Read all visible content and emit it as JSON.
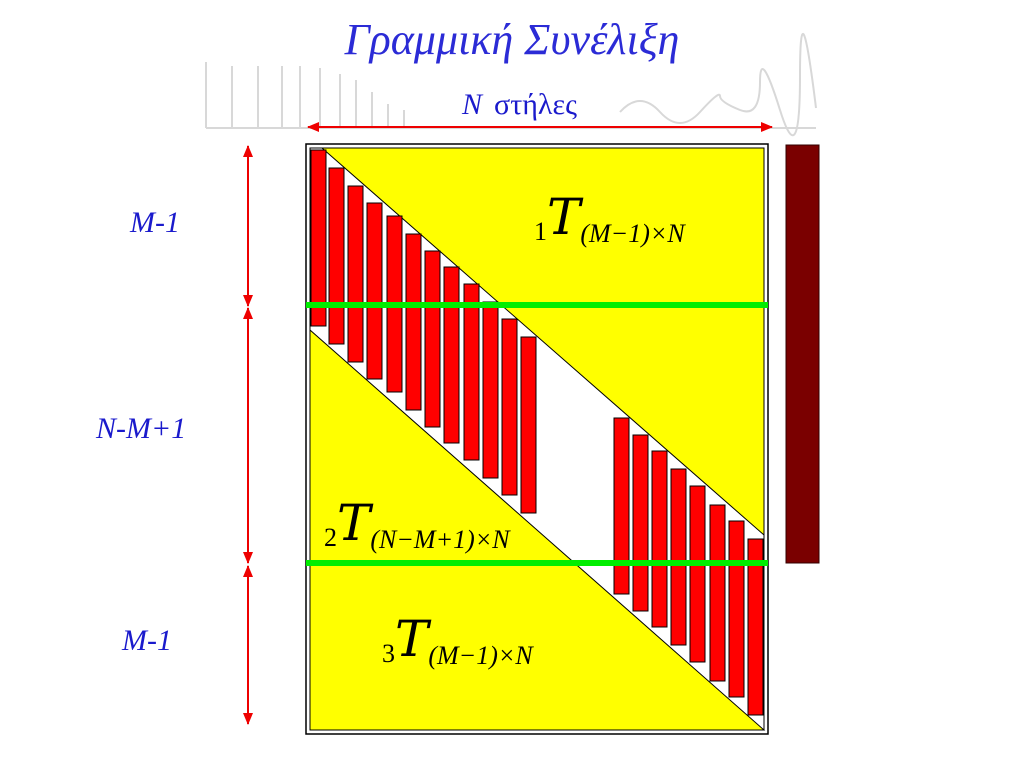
{
  "title": "Γραμμική Συνέλιξη",
  "columns": {
    "symbol": "N",
    "label": "στήλες"
  },
  "rows": [
    {
      "label": "M-1"
    },
    {
      "label": "N-M+1"
    },
    {
      "label": "M-1"
    }
  ],
  "matrices": [
    {
      "prefix": "1",
      "symbol": "T",
      "subscript": "(M−1)×N"
    },
    {
      "prefix": "2",
      "symbol": "T",
      "subscript": "(N−M+1)×N"
    },
    {
      "prefix": "3",
      "symbol": "T",
      "subscript": "(M−1)×N"
    }
  ],
  "colors": {
    "title": "#2b2bd6",
    "yellow": "#ffff00",
    "red": "#ff0000",
    "green": "#00ee00",
    "dark_bar": "#7a0000",
    "arrow": "#ee0000"
  }
}
